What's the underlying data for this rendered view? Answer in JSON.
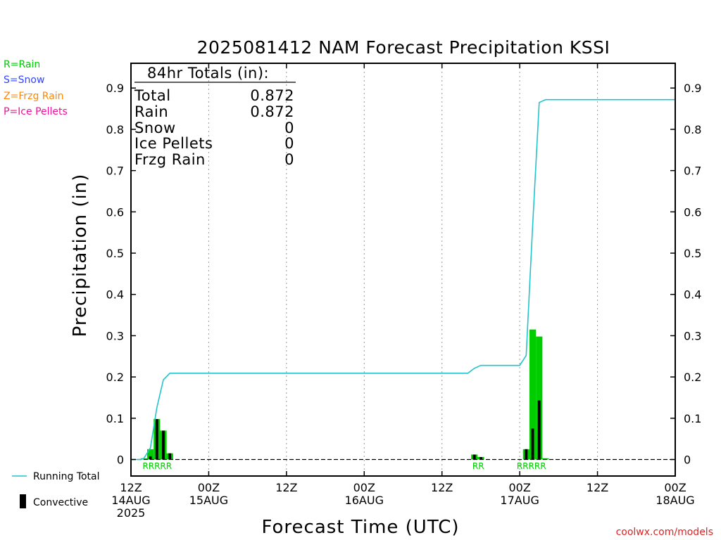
{
  "chart_data": {
    "type": "bar",
    "title": "2025081412 NAM Forecast Precipitation KSSI",
    "xlabel": "Forecast Time (UTC)",
    "ylabel": "Precipitation (in)",
    "credit": "coolwx.com/models",
    "ylim": [
      -0.04,
      0.96
    ],
    "yticks": [
      0,
      0.1,
      0.2,
      0.3,
      0.4,
      0.5,
      0.6,
      0.7,
      0.8,
      0.9
    ],
    "ytick_labels": [
      "0",
      "0.1",
      "0.2",
      "0.3",
      "0.4",
      "0.5",
      "0.6",
      "0.7",
      "0.8",
      "0.9"
    ],
    "xlim_hours": [
      0,
      84
    ],
    "xticks": [
      {
        "hour": 0,
        "lines": [
          "12Z",
          "14AUG",
          "2025"
        ]
      },
      {
        "hour": 12,
        "lines": [
          "00Z",
          "15AUG"
        ]
      },
      {
        "hour": 24,
        "lines": [
          "12Z"
        ]
      },
      {
        "hour": 36,
        "lines": [
          "00Z",
          "16AUG"
        ]
      },
      {
        "hour": 48,
        "lines": [
          "12Z"
        ]
      },
      {
        "hour": 60,
        "lines": [
          "00Z",
          "17AUG"
        ]
      },
      {
        "hour": 72,
        "lines": [
          "12Z"
        ]
      },
      {
        "hour": 84,
        "lines": [
          "00Z",
          "18AUG"
        ]
      }
    ],
    "legend_types": [
      {
        "text": "R=Rain",
        "color": "#00cc00"
      },
      {
        "text": "S=Snow",
        "color": "#3344ff"
      },
      {
        "text": "Z=Frzg Rain",
        "color": "#ff8800"
      },
      {
        "text": "P=Ice Pellets",
        "color": "#ee1199"
      }
    ],
    "legend_series": [
      {
        "name": "Running Total",
        "color": "#22c3cb"
      },
      {
        "name": "Convective",
        "color": "#000000"
      }
    ],
    "totals": {
      "heading": "84hr Totals (in):",
      "rows": [
        {
          "label": "Total",
          "value": "0.872"
        },
        {
          "label": "Rain",
          "value": "0.872"
        },
        {
          "label": "Snow",
          "value": "0"
        },
        {
          "label": "Ice Pellets",
          "value": "0"
        },
        {
          "label": "Frzg Rain",
          "value": "0"
        }
      ]
    },
    "bars": [
      {
        "hour": 2,
        "total": 0.003,
        "convective": 0.0
      },
      {
        "hour": 3,
        "total": 0.025,
        "convective": 0.008
      },
      {
        "hour": 4,
        "total": 0.098,
        "convective": 0.098
      },
      {
        "hour": 5,
        "total": 0.07,
        "convective": 0.07
      },
      {
        "hour": 6,
        "total": 0.015,
        "convective": 0.015
      },
      {
        "hour": 53,
        "total": 0.012,
        "convective": 0.012
      },
      {
        "hour": 54,
        "total": 0.006,
        "convective": 0.006
      },
      {
        "hour": 61,
        "total": 0.025,
        "convective": 0.025
      },
      {
        "hour": 62,
        "total": 0.315,
        "convective": 0.075
      },
      {
        "hour": 63,
        "total": 0.298,
        "convective": 0.143
      },
      {
        "hour": 64,
        "total": 0.003,
        "convective": 0.0
      }
    ],
    "running_total": [
      [
        0,
        0.0
      ],
      [
        1.5,
        0.0
      ],
      [
        2,
        0.003
      ],
      [
        3,
        0.028
      ],
      [
        4,
        0.126
      ],
      [
        5,
        0.193
      ],
      [
        6,
        0.209
      ],
      [
        52,
        0.209
      ],
      [
        53,
        0.221
      ],
      [
        54,
        0.228
      ],
      [
        60,
        0.228
      ],
      [
        61,
        0.252
      ],
      [
        62,
        0.567
      ],
      [
        63,
        0.865
      ],
      [
        64,
        0.872
      ],
      [
        84,
        0.872
      ]
    ],
    "precip_codes": [
      {
        "text": "RRRRR",
        "hour": 4.05
      },
      {
        "text": "RR",
        "hour": 53.6
      },
      {
        "text": "RRRRR",
        "hour": 61.8
      }
    ],
    "colors": {
      "rain": "#00cc00",
      "convective": "#000000",
      "running_total": "#22c3cb",
      "credit": "#dd2222",
      "code": "#00cc00"
    }
  }
}
